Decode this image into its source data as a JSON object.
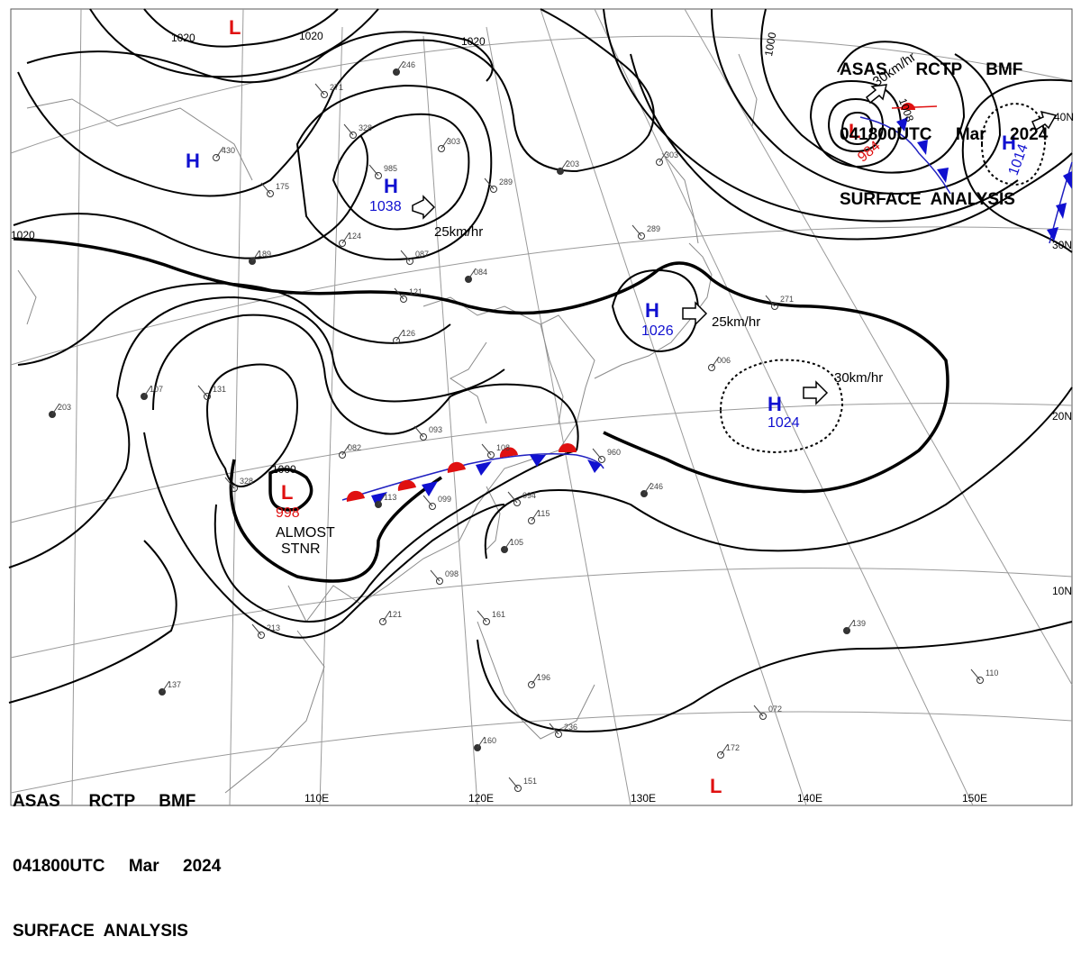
{
  "header_top": {
    "line1": "ASAS      RCTP     BMF",
    "line2": "041800UTC     Mar     2024",
    "line3": "SURFACE  ANALYSIS"
  },
  "header_bottom": {
    "line1": "ASAS      RCTP     BMF",
    "line2": "041800UTC     Mar     2024",
    "line3": "SURFACE  ANALYSIS"
  },
  "colors": {
    "high": "#1010d0",
    "low": "#e01010",
    "isobar": "#000000",
    "grid": "#9a9a9a"
  },
  "isobar_labels": {
    "a": "1020",
    "b": "1020",
    "c": "1020",
    "d": "1020",
    "e": "1000",
    "f": "1000",
    "g": "1008"
  },
  "pressure_centers": [
    {
      "id": "h-north",
      "type": "H",
      "value": "1038",
      "speed": "25km/hr"
    },
    {
      "id": "h-west",
      "type": "H",
      "value": ""
    },
    {
      "id": "h-japan",
      "type": "H",
      "value": "1026",
      "speed": "25km/hr"
    },
    {
      "id": "h-pacific",
      "type": "H",
      "value": "1024",
      "speed": "30km/hr"
    },
    {
      "id": "h-east",
      "type": "H",
      "value": "1014"
    },
    {
      "id": "l-kuril",
      "type": "L",
      "value": "984",
      "speed": "30km/hr"
    },
    {
      "id": "l-sw",
      "type": "L",
      "value": "998",
      "note_1": "ALMOST",
      "note_2": "STNR"
    },
    {
      "id": "l-topleft",
      "type": "L",
      "value": ""
    },
    {
      "id": "l-south",
      "type": "L",
      "value": ""
    }
  ],
  "latitude_labels": [
    "40N",
    "30N",
    "20N",
    "10N"
  ],
  "longitude_labels": [
    "110E",
    "120E",
    "130E",
    "140E",
    "150E"
  ],
  "station_samples": [
    "246",
    "271",
    "303",
    "289",
    "203",
    "328",
    "430",
    "175",
    "189",
    "985",
    "124",
    "087",
    "084",
    "121",
    "126",
    "131",
    "107",
    "093",
    "082",
    "108",
    "113",
    "099",
    "115",
    "094",
    "105",
    "098",
    "121",
    "213",
    "137",
    "161",
    "196",
    "236",
    "160",
    "151",
    "172",
    "072",
    "139",
    "110",
    "006",
    "960"
  ]
}
